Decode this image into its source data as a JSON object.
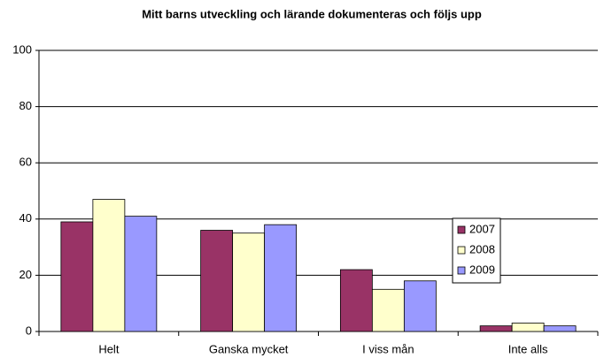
{
  "chart_data": {
    "type": "bar",
    "title": "Mitt barns utveckling och lärande dokumenteras och följs upp",
    "categories": [
      "Helt",
      "Ganska mycket",
      "I viss mån",
      "Inte alls"
    ],
    "series": [
      {
        "name": "2007",
        "color": "#993366",
        "values": [
          39,
          36,
          22,
          2
        ]
      },
      {
        "name": "2008",
        "color": "#ffffcc",
        "values": [
          47,
          35,
          15,
          3
        ]
      },
      {
        "name": "2009",
        "color": "#9999ff",
        "values": [
          41,
          38,
          18,
          2
        ]
      }
    ],
    "ylim": [
      0,
      100
    ],
    "yticks": [
      0,
      20,
      40,
      60,
      80,
      100
    ],
    "grid": true,
    "legend": "right"
  }
}
